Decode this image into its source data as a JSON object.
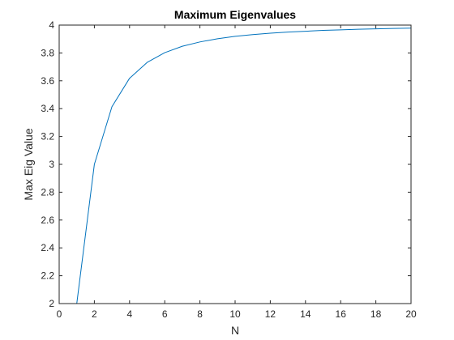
{
  "chart_data": {
    "type": "line",
    "title": "Maximum Eigenvalues",
    "xlabel": "N",
    "ylabel": "Max Eig Value",
    "xlim": [
      0,
      20
    ],
    "ylim": [
      2,
      4
    ],
    "xticks": [
      0,
      2,
      4,
      6,
      8,
      10,
      12,
      14,
      16,
      18,
      20
    ],
    "yticks": [
      2,
      2.2,
      2.4,
      2.6,
      2.8,
      3,
      3.2,
      3.4,
      3.6,
      3.8,
      4
    ],
    "xtick_labels": [
      "0",
      "2",
      "4",
      "6",
      "8",
      "10",
      "12",
      "14",
      "16",
      "18",
      "20"
    ],
    "ytick_labels": [
      "2",
      "2.2",
      "2.4",
      "2.6",
      "2.8",
      "3",
      "3.2",
      "3.4",
      "3.6",
      "3.8",
      "4"
    ],
    "grid": false,
    "series": [
      {
        "color": "#0072BD",
        "x": [
          1,
          2,
          3,
          4,
          5,
          6,
          7,
          8,
          9,
          10,
          11,
          12,
          13,
          14,
          15,
          16,
          17,
          18,
          19,
          20
        ],
        "y": [
          2,
          3,
          3.414,
          3.618,
          3.732,
          3.802,
          3.848,
          3.879,
          3.902,
          3.919,
          3.932,
          3.942,
          3.95,
          3.956,
          3.962,
          3.966,
          3.97,
          3.973,
          3.976,
          3.978
        ]
      }
    ]
  }
}
